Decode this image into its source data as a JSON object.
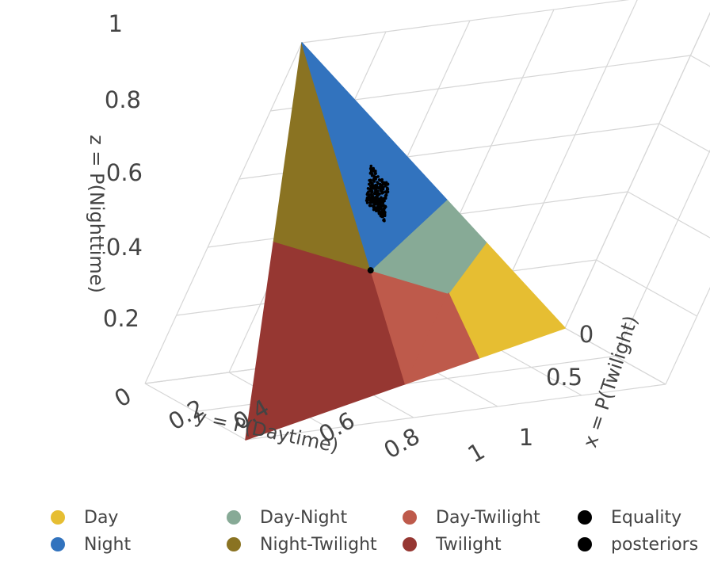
{
  "chart_data": {
    "type": "scatter3d",
    "axes": {
      "x": {
        "title": "x = P(Twilight)",
        "ticks": [
          "0",
          "0.5",
          "1"
        ],
        "range": [
          0,
          1
        ]
      },
      "y": {
        "title": "y = P(Daytime)",
        "ticks": [
          "0",
          "0.2",
          "0.4",
          "0.6",
          "0.8",
          "1"
        ],
        "range": [
          0,
          1
        ]
      },
      "z": {
        "title": "z = P(Nighttime)",
        "ticks": [
          "0.2",
          "0.4",
          "0.6",
          "0.8",
          "1"
        ],
        "range": [
          0,
          1
        ]
      }
    },
    "grid": true,
    "legend_position": "bottom",
    "series": [
      {
        "name": "Day",
        "color": "#E6BE32"
      },
      {
        "name": "Night",
        "color": "#3273BE"
      },
      {
        "name": "Day-Night",
        "color": "#87AA96"
      },
      {
        "name": "Night-Twilight",
        "color": "#8A7322"
      },
      {
        "name": "Day-Twilight",
        "color": "#BE5A4B"
      },
      {
        "name": "Twilight",
        "color": "#963732"
      },
      {
        "name": "Equality",
        "color": "#000000",
        "point": {
          "x": 0.333,
          "y": 0.333,
          "z": 0.333
        }
      },
      {
        "name": "posteriors",
        "color": "#000000",
        "center": {
          "x": 0.15,
          "y": 0.32,
          "z": 0.53
        }
      }
    ]
  }
}
